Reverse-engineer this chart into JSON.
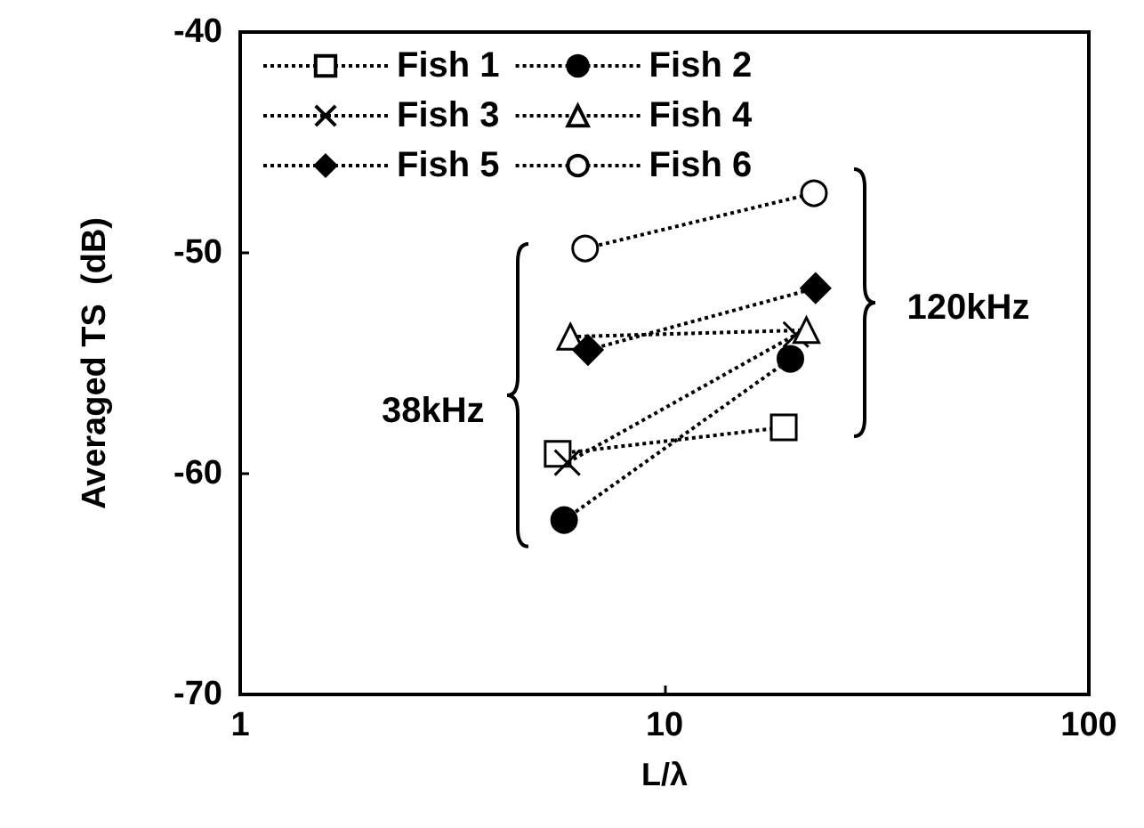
{
  "chart_data": {
    "type": "line",
    "xlabel": "L/λ",
    "ylabel": "Averaged TS  (dB)",
    "log": "x",
    "xlim": [
      1,
      100
    ],
    "xticks": [
      1,
      10,
      100
    ],
    "ylim": [
      -70,
      -40
    ],
    "yticks": [
      -70,
      -60,
      -50,
      -40
    ],
    "grid": false,
    "legend": "top left",
    "line_style": "dotted",
    "annotations": [
      "38kHz",
      "120kHz"
    ],
    "series": [
      {
        "name": "Fish 1",
        "color": "#000000",
        "marker": "square",
        "x": [
          5.6,
          19.1
        ],
        "values": [
          -59.1,
          -57.9
        ]
      },
      {
        "name": "Fish 2",
        "color": "#000000",
        "marker": "circle",
        "x": [
          5.8,
          19.8
        ],
        "values": [
          -62.1,
          -54.8
        ]
      },
      {
        "name": "Fish 3",
        "color": "#000000",
        "marker": "cross",
        "x": [
          5.9,
          20.4
        ],
        "values": [
          -59.5,
          -53.7
        ]
      },
      {
        "name": "Fish 4",
        "color": "#000000",
        "marker": "triangle",
        "x": [
          6.0,
          21.6
        ],
        "values": [
          -53.8,
          -53.5
        ]
      },
      {
        "name": "Fish 5",
        "color": "#000000",
        "marker": "diamond",
        "x": [
          6.6,
          22.7
        ],
        "values": [
          -54.4,
          -51.6
        ]
      },
      {
        "name": "Fish 6",
        "color": "#000000",
        "marker": "circle",
        "x": [
          6.5,
          22.5
        ],
        "values": [
          -49.8,
          -47.3
        ]
      }
    ]
  }
}
